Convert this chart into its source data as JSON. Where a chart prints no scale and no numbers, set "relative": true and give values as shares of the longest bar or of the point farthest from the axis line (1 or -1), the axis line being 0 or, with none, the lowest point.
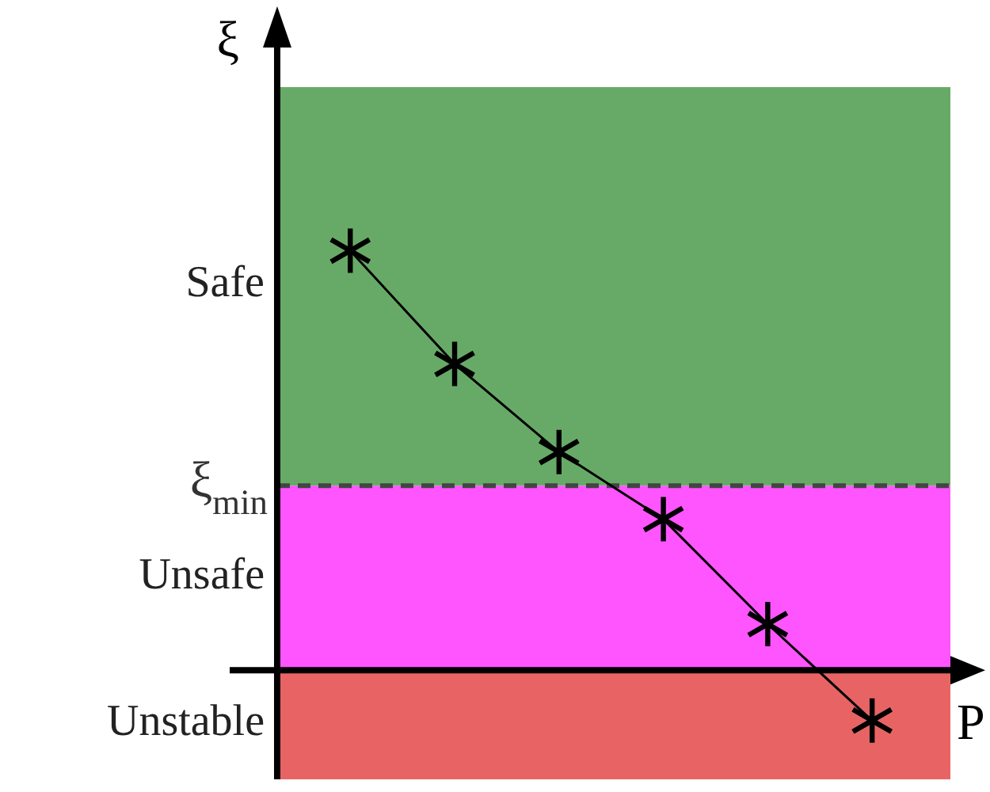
{
  "chart_data": {
    "type": "line",
    "relative": true,
    "xlabel": "P",
    "ylabel": "ξ",
    "categories": [
      null,
      null,
      null,
      null,
      null,
      null
    ],
    "series": [
      {
        "color": "#000000",
        "values": [
          1,
          0.73,
          0.52,
          0.36,
          0.11,
          -0.12
        ]
      }
    ],
    "marker": "cross",
    "line_style": "solid",
    "bands": [
      {
        "axis": "y",
        "from": 0.44,
        "to": 1.39,
        "label": "Safe",
        "color": "#67aa67"
      },
      {
        "axis": "y",
        "from": 0,
        "to": 0.44,
        "label": "Unsafe",
        "color": "#ff55ff"
      },
      {
        "axis": "y",
        "from": -0.26,
        "to": 0,
        "label": "Unstable",
        "color": "#e86464"
      }
    ],
    "ref_lines": [
      {
        "axis": "y",
        "value": 0.44,
        "label": "ξ$_{min}$",
        "color": "#444444",
        "line_style": "dashed"
      }
    ]
  }
}
